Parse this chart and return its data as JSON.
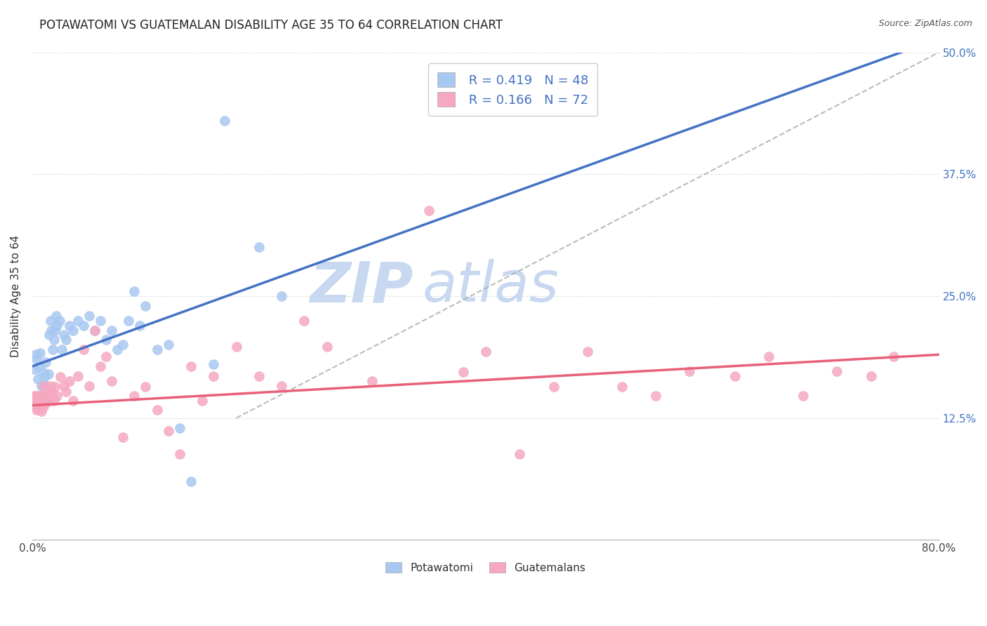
{
  "title": "POTAWATOMI VS GUATEMALAN DISABILITY AGE 35 TO 64 CORRELATION CHART",
  "source": "Source: ZipAtlas.com",
  "ylabel": "Disability Age 35 to 64",
  "xlim": [
    0.0,
    0.8
  ],
  "ylim": [
    0.0,
    0.5
  ],
  "xtick_positions": [
    0.0,
    0.1,
    0.2,
    0.3,
    0.4,
    0.5,
    0.6,
    0.7,
    0.8
  ],
  "xtick_labels": [
    "0.0%",
    "",
    "",
    "",
    "",
    "",
    "",
    "",
    "80.0%"
  ],
  "ytick_labels_right": [
    "50.0%",
    "37.5%",
    "25.0%",
    "12.5%"
  ],
  "ytick_positions_right": [
    0.5,
    0.375,
    0.25,
    0.125
  ],
  "legend_r1": "R = 0.419",
  "legend_n1": "N = 48",
  "legend_r2": "R = 0.166",
  "legend_n2": "N = 72",
  "blue_color": "#A8C8F0",
  "pink_color": "#F5A8C0",
  "blue_line_color": "#4472C4",
  "pink_line_color": "#E8607A",
  "dash_line_color": "#AAAAAA",
  "background_color": "#FFFFFF",
  "watermark_zip_color": "#C8D8F0",
  "watermark_atlas_color": "#C8D8F0",
  "potawatomi_x": [
    0.002,
    0.003,
    0.004,
    0.005,
    0.006,
    0.007,
    0.008,
    0.009,
    0.01,
    0.011,
    0.012,
    0.013,
    0.014,
    0.015,
    0.016,
    0.017,
    0.018,
    0.019,
    0.02,
    0.021,
    0.022,
    0.024,
    0.026,
    0.028,
    0.03,
    0.033,
    0.036,
    0.04,
    0.045,
    0.05,
    0.055,
    0.06,
    0.065,
    0.07,
    0.075,
    0.08,
    0.085,
    0.09,
    0.095,
    0.1,
    0.11,
    0.12,
    0.13,
    0.14,
    0.16,
    0.17,
    0.2,
    0.22
  ],
  "potawatomi_y": [
    0.175,
    0.19,
    0.185,
    0.165,
    0.178,
    0.192,
    0.158,
    0.172,
    0.16,
    0.168,
    0.182,
    0.145,
    0.17,
    0.21,
    0.225,
    0.215,
    0.195,
    0.205,
    0.215,
    0.23,
    0.22,
    0.225,
    0.195,
    0.21,
    0.205,
    0.22,
    0.215,
    0.225,
    0.22,
    0.23,
    0.215,
    0.225,
    0.205,
    0.215,
    0.195,
    0.2,
    0.225,
    0.255,
    0.22,
    0.24,
    0.195,
    0.2,
    0.115,
    0.06,
    0.18,
    0.43,
    0.3,
    0.25
  ],
  "guatemalan_x": [
    0.001,
    0.002,
    0.002,
    0.003,
    0.003,
    0.004,
    0.004,
    0.005,
    0.005,
    0.006,
    0.006,
    0.007,
    0.007,
    0.008,
    0.008,
    0.009,
    0.009,
    0.01,
    0.01,
    0.011,
    0.012,
    0.013,
    0.014,
    0.015,
    0.016,
    0.017,
    0.018,
    0.019,
    0.02,
    0.022,
    0.025,
    0.028,
    0.03,
    0.033,
    0.036,
    0.04,
    0.045,
    0.05,
    0.055,
    0.06,
    0.065,
    0.07,
    0.08,
    0.09,
    0.1,
    0.11,
    0.12,
    0.13,
    0.14,
    0.15,
    0.16,
    0.18,
    0.2,
    0.22,
    0.24,
    0.26,
    0.3,
    0.35,
    0.38,
    0.4,
    0.43,
    0.46,
    0.49,
    0.52,
    0.55,
    0.58,
    0.62,
    0.65,
    0.68,
    0.71,
    0.74,
    0.76
  ],
  "guatemalan_y": [
    0.145,
    0.148,
    0.138,
    0.143,
    0.138,
    0.148,
    0.133,
    0.145,
    0.135,
    0.14,
    0.148,
    0.135,
    0.142,
    0.132,
    0.137,
    0.148,
    0.142,
    0.137,
    0.158,
    0.148,
    0.143,
    0.148,
    0.142,
    0.148,
    0.158,
    0.152,
    0.148,
    0.143,
    0.157,
    0.148,
    0.167,
    0.158,
    0.152,
    0.163,
    0.143,
    0.168,
    0.195,
    0.158,
    0.215,
    0.178,
    0.188,
    0.163,
    0.105,
    0.148,
    0.157,
    0.133,
    0.112,
    0.088,
    0.178,
    0.143,
    0.168,
    0.198,
    0.168,
    0.158,
    0.225,
    0.198,
    0.163,
    0.338,
    0.172,
    0.193,
    0.088,
    0.157,
    0.193,
    0.157,
    0.148,
    0.173,
    0.168,
    0.188,
    0.148,
    0.173,
    0.168,
    0.188
  ],
  "blue_trend_intercept": 0.178,
  "blue_trend_slope": 0.42,
  "pink_trend_intercept": 0.138,
  "pink_trend_slope": 0.065
}
